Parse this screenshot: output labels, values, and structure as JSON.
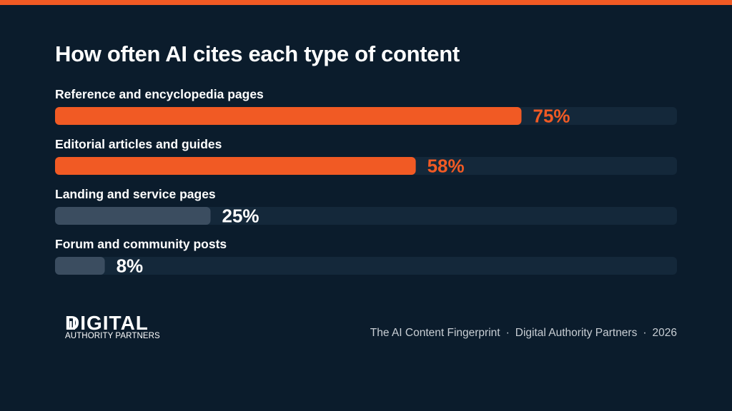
{
  "title": "How often AI cites each type of content",
  "chart_data": {
    "type": "bar",
    "orientation": "horizontal",
    "categories": [
      "Reference and encyclopedia pages",
      "Editorial articles and guides",
      "Landing and service pages",
      "Forum and community posts"
    ],
    "values": [
      75,
      58,
      25,
      8
    ],
    "value_labels": [
      "75%",
      "58%",
      "25%",
      "8%"
    ],
    "xlim": [
      0,
      100
    ],
    "title": "How often AI cites each type of content",
    "xlabel": "",
    "ylabel": "",
    "grid": false,
    "colors": {
      "highlight": "#f15a24",
      "muted": "#3b4d60",
      "track": "#14283a",
      "highlight_label": "#f15a24",
      "muted_label": "#ffffff"
    },
    "highlighted": [
      true,
      true,
      false,
      false
    ]
  },
  "footer": {
    "logo": {
      "word": "DIGITAL",
      "sub": "AUTHORITY PARTNERS"
    },
    "credit": {
      "report": "The AI Content Fingerprint",
      "company": "Digital Authority Partners",
      "year": "2026",
      "separator": "·"
    }
  },
  "colors": {
    "background": "#0b1c2c",
    "accent": "#f15a24"
  }
}
